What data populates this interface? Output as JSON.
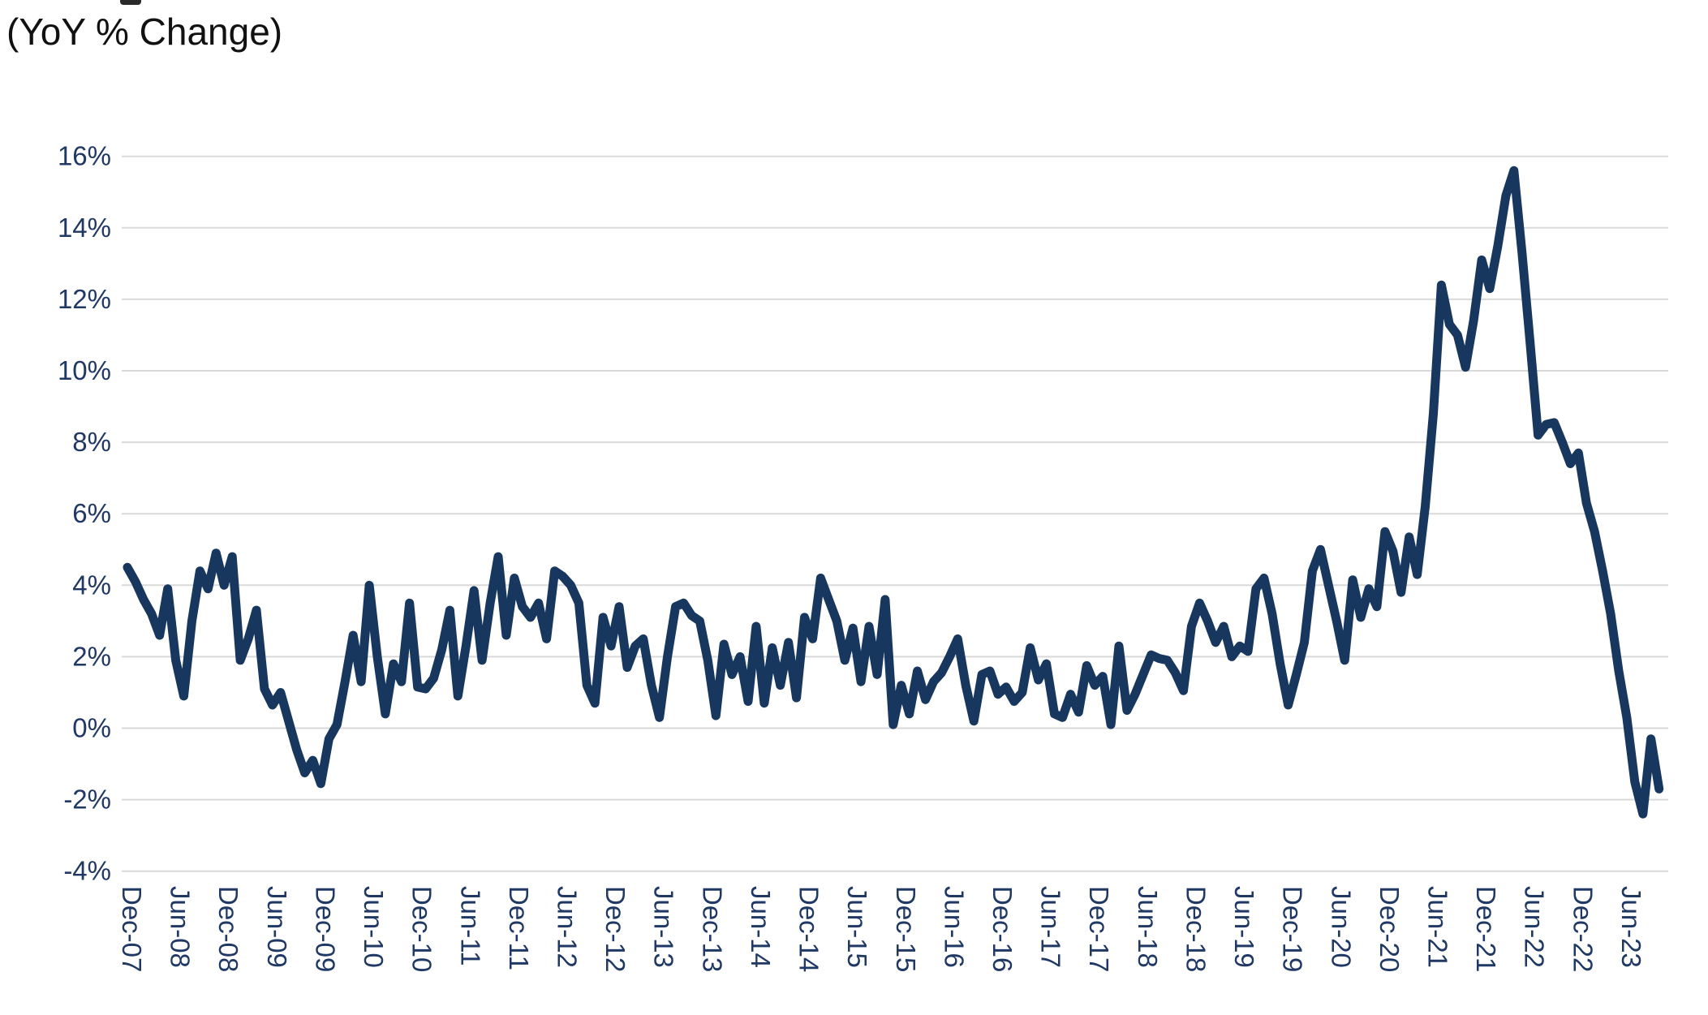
{
  "chart_data": {
    "type": "line",
    "title": "(YoY % Change)",
    "frequency": "monthly",
    "start_label": "Dec-07",
    "end_label": "Oct-23",
    "x_tick_labels": [
      "Dec-07",
      "Jun-08",
      "Dec-08",
      "Jun-09",
      "Dec-09",
      "Jun-10",
      "Dec-10",
      "Jun-11",
      "Dec-11",
      "Jun-12",
      "Dec-12",
      "Jun-13",
      "Dec-13",
      "Jun-14",
      "Dec-14",
      "Jun-15",
      "Dec-15",
      "Jun-16",
      "Dec-16",
      "Jun-17",
      "Dec-17",
      "Jun-18",
      "Dec-18",
      "Jun-19",
      "Dec-19",
      "Jun-20",
      "Dec-20",
      "Jun-21",
      "Dec-21",
      "Jun-22",
      "Dec-22",
      "Jun-23"
    ],
    "x_ticks_every_n_months": 6,
    "y_ticks": [
      16,
      14,
      12,
      10,
      8,
      6,
      4,
      2,
      0,
      -2,
      -4
    ],
    "y_tick_suffix": "%",
    "ylim": [
      -4,
      16
    ],
    "grid": true,
    "legend": false,
    "line_color": "#17375E",
    "label_color": "#1F3864",
    "grid_color": "#D9D9D9",
    "title_color": "#111111",
    "values": [
      4.5,
      4.1,
      3.6,
      3.2,
      2.6,
      3.9,
      1.9,
      0.9,
      3.0,
      4.4,
      3.9,
      4.9,
      4.0,
      4.8,
      1.9,
      2.5,
      3.3,
      1.1,
      0.65,
      1.0,
      0.2,
      -0.6,
      -1.25,
      -0.9,
      -1.55,
      -0.3,
      0.1,
      1.3,
      2.6,
      1.3,
      4.0,
      2.0,
      0.4,
      1.8,
      1.3,
      3.5,
      1.15,
      1.1,
      1.4,
      2.2,
      3.3,
      0.9,
      2.3,
      3.85,
      1.9,
      3.5,
      4.8,
      2.6,
      4.2,
      3.4,
      3.1,
      3.5,
      2.5,
      4.4,
      4.25,
      4.0,
      3.5,
      1.2,
      0.7,
      3.1,
      2.3,
      3.4,
      1.7,
      2.3,
      2.5,
      1.2,
      0.3,
      2.0,
      3.4,
      3.5,
      3.15,
      3.0,
      1.9,
      0.35,
      2.35,
      1.5,
      2.0,
      0.75,
      2.85,
      0.7,
      2.25,
      1.2,
      2.4,
      0.85,
      3.1,
      2.5,
      4.2,
      3.6,
      3.0,
      1.9,
      2.8,
      1.3,
      2.85,
      1.5,
      3.6,
      0.1,
      1.2,
      0.4,
      1.6,
      0.8,
      1.3,
      1.55,
      2.0,
      2.5,
      1.2,
      0.2,
      1.5,
      1.6,
      0.95,
      1.15,
      0.75,
      1.0,
      2.25,
      1.35,
      1.8,
      0.4,
      0.3,
      0.95,
      0.45,
      1.75,
      1.2,
      1.45,
      0.1,
      2.3,
      0.5,
      0.95,
      1.5,
      2.05,
      1.95,
      1.9,
      1.55,
      1.05,
      2.85,
      3.5,
      3.0,
      2.4,
      2.85,
      2.0,
      2.3,
      2.15,
      3.9,
      4.2,
      3.2,
      1.8,
      0.65,
      1.5,
      2.4,
      4.4,
      5.0,
      4.0,
      3.0,
      1.9,
      4.15,
      3.1,
      3.9,
      3.4,
      5.5,
      4.95,
      3.8,
      5.35,
      4.3,
      6.2,
      8.8,
      12.4,
      11.3,
      11.0,
      10.1,
      11.4,
      13.1,
      12.3,
      13.5,
      14.9,
      15.6,
      13.3,
      10.8,
      8.2,
      8.5,
      8.55,
      8.0,
      7.4,
      7.7,
      6.3,
      5.5,
      4.4,
      3.2,
      1.6,
      0.3,
      -1.5,
      -2.4,
      -0.3,
      -1.7
    ]
  }
}
